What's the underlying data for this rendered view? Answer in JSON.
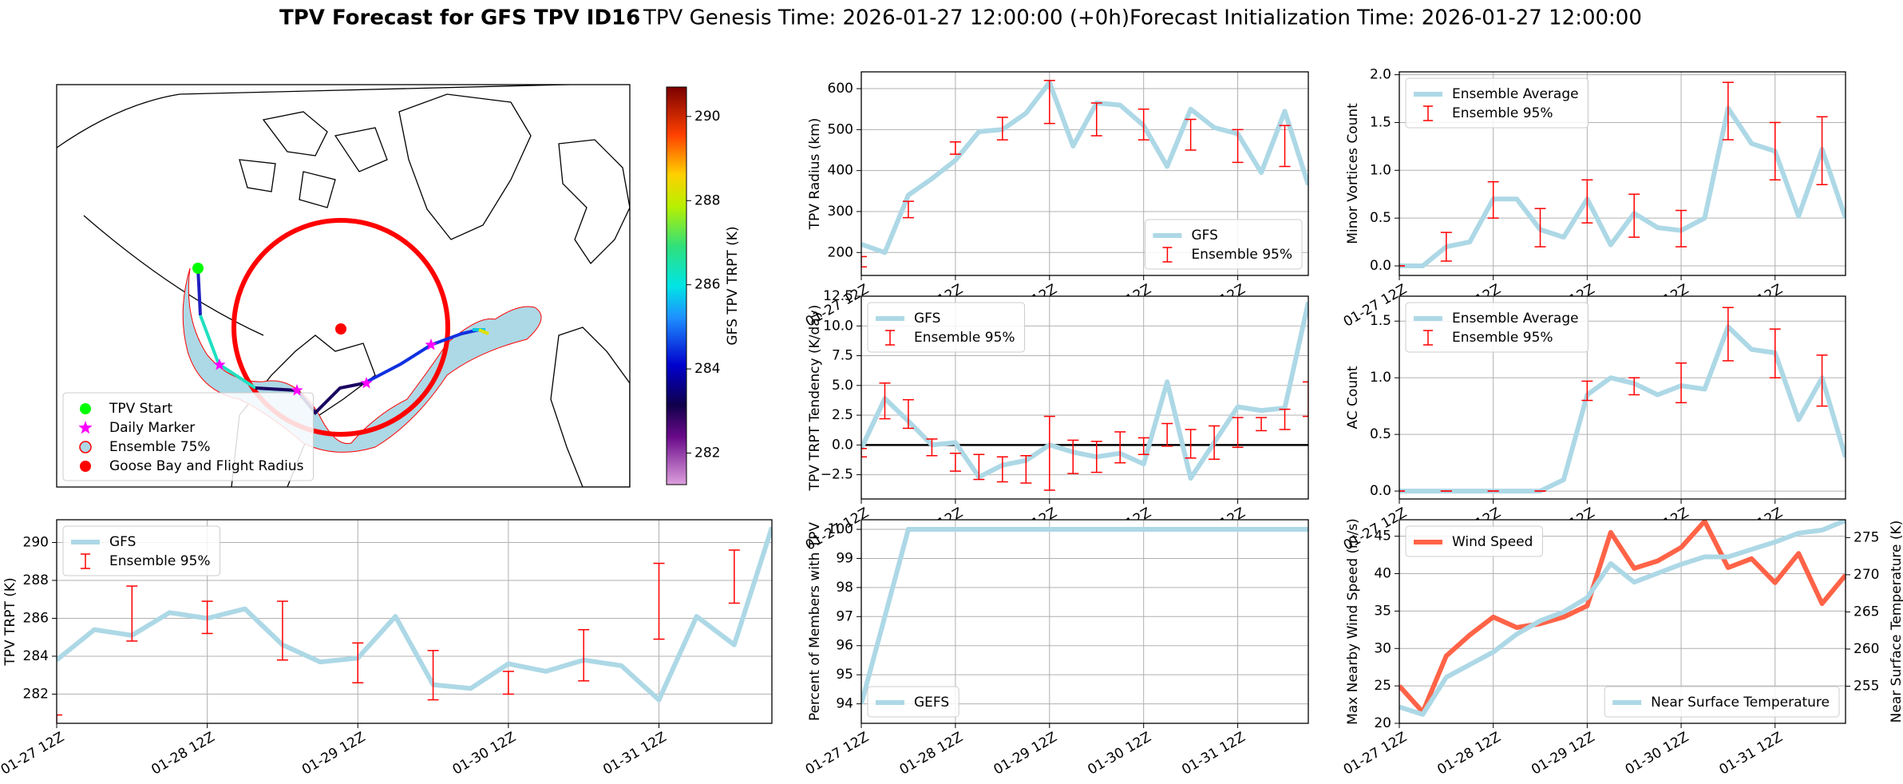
{
  "title": "TPV Forecast for GFS TPV ID16",
  "genesis": "TPV Genesis Time: 2026-01-27 12:00:00 (+0h)",
  "initialization": "Forecast Initialization Time: 2026-01-27 12:00:00",
  "chart_data": [
    {
      "type": "map",
      "legend": "lower left",
      "legend_items": [
        {
          "name": "TPV Start",
          "color": "#00ff00",
          "marker": "circle"
        },
        {
          "name": "Daily Marker",
          "color": "#ff00ff",
          "marker": "star"
        },
        {
          "name": "Ensemble 75%",
          "color": "#add8e6",
          "edgecolor": "#ff0000",
          "marker": "circle"
        },
        {
          "name": "Goose Bay and Flight Radius",
          "color": "#ff0000",
          "marker": "circle"
        }
      ],
      "colorbar": {
        "label": "GFS TPV TRPT (K)",
        "ylim": [
          281.25,
          290.7
        ],
        "yticks": [
          282,
          284,
          286,
          288,
          290
        ]
      }
    },
    {
      "type": "line",
      "ylabel": "TPV TRPT (K)",
      "grid": true,
      "legend": "upper left",
      "categories": [
        "01-27 12Z",
        null,
        null,
        null,
        "01-28 12Z",
        null,
        null,
        null,
        "01-29 12Z",
        null,
        null,
        null,
        "01-30 12Z",
        null,
        null,
        null,
        "01-31 12Z",
        null,
        null,
        null
      ],
      "ylim": [
        280.46,
        291.2
      ],
      "yticks": [
        282,
        284,
        286,
        288,
        290
      ],
      "series": [
        {
          "name": "GFS",
          "color": "#add8e6",
          "values": [
            283.8,
            285.4,
            285.1,
            286.3,
            286.0,
            286.5,
            284.6,
            283.7,
            283.9,
            286.1,
            282.5,
            282.3,
            283.6,
            283.2,
            283.8,
            283.5,
            281.7,
            286.1,
            284.6,
            290.8
          ]
        },
        {
          "name": "Ensemble 95%",
          "color": "#ff0000",
          "type": "errorbar",
          "lower": [
            280.3,
            null,
            284.8,
            null,
            285.2,
            null,
            283.8,
            null,
            282.6,
            null,
            281.7,
            null,
            282.0,
            null,
            282.7,
            null,
            284.9,
            null,
            286.8,
            null
          ],
          "upper": [
            280.9,
            null,
            287.7,
            null,
            286.9,
            null,
            286.9,
            null,
            284.7,
            null,
            284.3,
            null,
            283.2,
            null,
            285.4,
            null,
            288.9,
            null,
            289.6,
            null
          ]
        }
      ]
    },
    {
      "type": "line",
      "ylabel": "TPV Radius (km)",
      "grid": true,
      "legend": "lower right",
      "categories": [
        "01-27 12Z",
        null,
        null,
        null,
        "01-28 12Z",
        null,
        null,
        null,
        "01-29 12Z",
        null,
        null,
        null,
        "01-30 12Z",
        null,
        null,
        null,
        "01-31 12Z",
        null,
        null,
        null
      ],
      "ylim": [
        144,
        641
      ],
      "yticks": [
        200,
        300,
        400,
        500,
        600
      ],
      "series": [
        {
          "name": "GFS",
          "color": "#add8e6",
          "values": [
            220,
            200,
            340,
            380,
            425,
            495,
            500,
            540,
            615,
            460,
            565,
            560,
            510,
            410,
            550,
            505,
            490,
            395,
            545,
            365
          ]
        },
        {
          "name": "Ensemble 95%",
          "color": "#ff0000",
          "type": "errorbar",
          "lower": [
            165,
            null,
            285,
            null,
            440,
            null,
            475,
            null,
            515,
            null,
            485,
            null,
            475,
            null,
            450,
            null,
            420,
            null,
            410,
            null
          ],
          "upper": [
            190,
            null,
            325,
            null,
            470,
            null,
            530,
            null,
            620,
            null,
            565,
            null,
            550,
            null,
            525,
            null,
            500,
            null,
            510,
            null
          ]
        }
      ]
    },
    {
      "type": "line",
      "ylabel": "TPV TRPT Tendency (K/day)",
      "grid": true,
      "legend": "upper left",
      "zero_line": true,
      "categories": [
        "01-27 12Z",
        null,
        null,
        null,
        "01-28 12Z",
        null,
        null,
        null,
        "01-29 12Z",
        null,
        null,
        null,
        "01-30 12Z",
        null,
        null,
        null,
        "01-31 12Z",
        null,
        null,
        null
      ],
      "ylim": [
        -4.54,
        12.5
      ],
      "yticks": [
        {
          "value": -2.5,
          "label": "−2.5"
        },
        {
          "value": 0,
          "label": "0.0"
        },
        2.5,
        {
          "value": 5,
          "label": "5.0"
        },
        7.5,
        {
          "value": 10,
          "label": "10.0"
        },
        12.5
      ],
      "series": [
        {
          "name": "GFS",
          "color": "#add8e6",
          "values": [
            -0.3,
            3.9,
            2.0,
            0.0,
            0.2,
            -2.7,
            -1.7,
            -1.3,
            0.0,
            -0.6,
            -1.0,
            -0.7,
            -1.6,
            5.3,
            -2.8,
            0.2,
            3.2,
            2.9,
            3.1,
            12.0
          ]
        },
        {
          "name": "Ensemble 95%",
          "color": "#ff0000",
          "type": "errorbar",
          "lower": [
            -1.0,
            2.2,
            1.4,
            -0.9,
            -2.2,
            -2.9,
            -3.1,
            -3.2,
            -3.8,
            -2.4,
            -2.3,
            -1.5,
            -0.8,
            -0.1,
            -1.1,
            -1.2,
            -0.2,
            1.2,
            1.3,
            2.4
          ],
          "upper": [
            -0.3,
            5.2,
            3.8,
            0.5,
            -0.7,
            -0.8,
            -1.0,
            -0.9,
            2.4,
            0.4,
            0.3,
            1.1,
            0.6,
            1.8,
            1.3,
            1.6,
            2.3,
            2.3,
            3.0,
            5.3
          ]
        }
      ]
    },
    {
      "type": "line",
      "ylabel": "Percent of Members with TPV",
      "grid": true,
      "legend": "lower left",
      "categories": [
        "01-27 12Z",
        null,
        null,
        null,
        "01-28 12Z",
        null,
        null,
        null,
        "01-29 12Z",
        null,
        null,
        null,
        "01-30 12Z",
        null,
        null,
        null,
        "01-31 12Z",
        null,
        null,
        null
      ],
      "ylim": [
        93.33,
        100.33
      ],
      "yticks": [
        94,
        95,
        96,
        97,
        98,
        99,
        100
      ],
      "series": [
        {
          "name": "GEFS",
          "color": "#add8e6",
          "values": [
            94,
            97,
            100,
            100,
            100,
            100,
            100,
            100,
            100,
            100,
            100,
            100,
            100,
            100,
            100,
            100,
            100,
            100,
            100,
            100
          ]
        }
      ]
    },
    {
      "type": "line",
      "ylabel": "Minor Vortices Count",
      "grid": true,
      "legend": "upper left",
      "categories": [
        "01-27 12Z",
        null,
        null,
        null,
        "01-28 12Z",
        null,
        null,
        null,
        "01-29 12Z",
        null,
        null,
        null,
        "01-30 12Z",
        null,
        null,
        null,
        "01-31 12Z",
        null,
        null,
        null
      ],
      "ylim": [
        -0.1,
        2.03
      ],
      "yticks": [
        {
          "value": 0,
          "label": "0.0"
        },
        0.5,
        {
          "value": 1,
          "label": "1.0"
        },
        1.5,
        {
          "value": 2,
          "label": "2.0"
        }
      ],
      "series": [
        {
          "name": "Ensemble Average",
          "color": "#add8e6",
          "values": [
            0,
            0,
            0.2,
            0.25,
            0.7,
            0.7,
            0.38,
            0.3,
            0.7,
            0.22,
            0.55,
            0.4,
            0.37,
            0.5,
            1.65,
            1.28,
            1.2,
            0.52,
            1.22,
            0.5
          ]
        },
        {
          "name": "Ensemble 95%",
          "color": "#ff0000",
          "type": "errorbar",
          "lower": [
            0,
            null,
            0.05,
            null,
            0.5,
            null,
            0.2,
            null,
            0.45,
            null,
            0.3,
            null,
            0.2,
            null,
            1.32,
            null,
            0.9,
            null,
            0.85,
            null
          ],
          "upper": [
            0,
            null,
            0.35,
            null,
            0.88,
            null,
            0.6,
            null,
            0.9,
            null,
            0.75,
            null,
            0.58,
            null,
            1.92,
            null,
            1.5,
            null,
            1.56,
            null
          ]
        }
      ]
    },
    {
      "type": "line",
      "ylabel": "AC Count",
      "grid": true,
      "legend": "upper left",
      "categories": [
        "01-27 12Z",
        null,
        null,
        null,
        "01-28 12Z",
        null,
        null,
        null,
        "01-29 12Z",
        null,
        null,
        null,
        "01-30 12Z",
        null,
        null,
        null,
        "01-31 12Z",
        null,
        null,
        null
      ],
      "ylim": [
        -0.07,
        1.72
      ],
      "yticks": [
        {
          "value": 0,
          "label": "0.0"
        },
        0.5,
        {
          "value": 1,
          "label": "1.0"
        },
        1.5
      ],
      "series": [
        {
          "name": "Ensemble Average",
          "color": "#add8e6",
          "values": [
            0,
            0,
            0,
            0,
            0,
            0,
            0,
            0.1,
            0.85,
            1.0,
            0.95,
            0.85,
            0.93,
            0.9,
            1.45,
            1.25,
            1.22,
            0.63,
            1.0,
            0.3
          ]
        },
        {
          "name": "Ensemble 95%",
          "color": "#ff0000",
          "type": "errorbar",
          "lower": [
            0,
            null,
            0,
            null,
            0,
            null,
            0,
            null,
            0.8,
            null,
            0.85,
            null,
            0.78,
            null,
            1.15,
            null,
            1.0,
            null,
            0.75,
            null
          ],
          "upper": [
            0,
            null,
            0,
            null,
            0,
            null,
            0,
            null,
            0.97,
            null,
            1.0,
            null,
            1.13,
            null,
            1.62,
            null,
            1.43,
            null,
            1.2,
            null
          ]
        }
      ]
    },
    {
      "type": "line",
      "ylabel": "Max Nearby Wind Speed (m/s)",
      "ylabel_color": "#ff6347",
      "y2label": "Near Surface Temperature (K)",
      "y2label_color": "#4169e1",
      "grid": true,
      "legend": "upper left",
      "y2_legend": "lower right",
      "categories": [
        "01-27 12Z",
        null,
        null,
        null,
        "01-28 12Z",
        null,
        null,
        null,
        "01-29 12Z",
        null,
        null,
        null,
        "01-30 12Z",
        null,
        null,
        null,
        "01-31 12Z",
        null,
        null,
        null
      ],
      "ylim": [
        20,
        47.2
      ],
      "yticks": [
        20,
        25,
        30,
        35,
        40,
        45
      ],
      "y2lim": [
        250,
        277.4
      ],
      "y2ticks": [
        255,
        260,
        265,
        270,
        275
      ],
      "series": [
        {
          "name": "Wind Speed",
          "color": "#ff6347",
          "values": [
            25,
            21.5,
            29,
            31.8,
            34.2,
            32.8,
            33.3,
            34.2,
            35.7,
            45.5,
            40.7,
            41.7,
            43.5,
            47,
            40.8,
            42,
            38.8,
            42.7,
            36,
            39.8
          ]
        },
        {
          "name": "Near Surface Temperature",
          "color": "#add8e6",
          "axis": "y2",
          "values": [
            252.2,
            251.2,
            256.2,
            257.9,
            259.6,
            262,
            263.8,
            265,
            266.9,
            271.5,
            269,
            270.2,
            271.4,
            272.4,
            272.4,
            273.4,
            274.4,
            275.6,
            276,
            277.3
          ]
        }
      ]
    }
  ]
}
